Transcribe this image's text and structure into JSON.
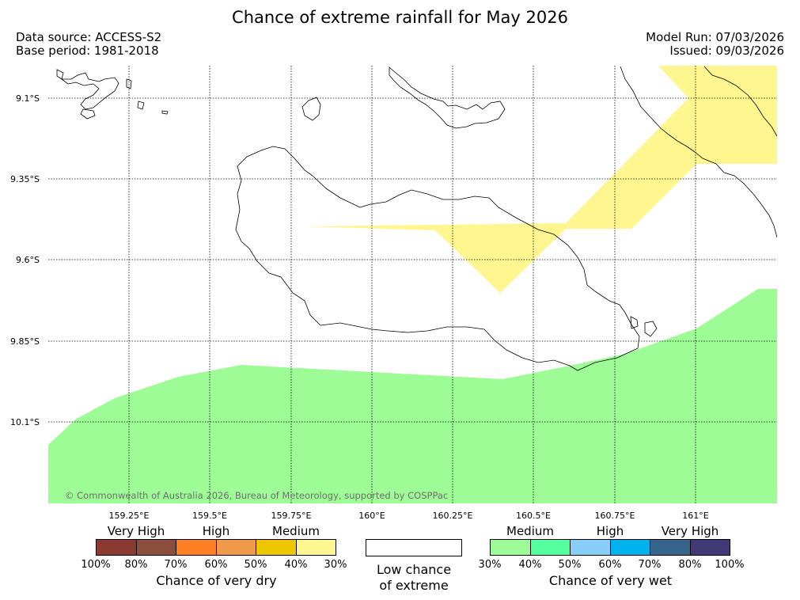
{
  "header": {
    "title": "Chance of extreme rainfall for May 2026",
    "data_source": "Data source: ACCESS-S2",
    "base_period": "Base period: 1981-2018",
    "model_run": "Model Run: 07/03/2026",
    "issued": "Issued: 09/03/2026"
  },
  "map": {
    "latitude_labels": [
      "9.1°S",
      "9.35°S",
      "9.6°S",
      "9.85°S",
      "10.1°S"
    ],
    "longitude_labels": [
      "159.25°E",
      "159.5°E",
      "159.75°E",
      "160°E",
      "160.25°E",
      "160.5°E",
      "160.75°E",
      "161°E"
    ],
    "extent": {
      "lon_min": 159.0,
      "lon_max": 161.25,
      "lat_min": -10.35,
      "lat_max": -9.0
    },
    "copyright": "© Commonwealth of Australia 2026, Bureau of Meteorology, supported by COSPPac",
    "colors": {
      "medium_dry": "#fff68f",
      "medium_wet": "#9efc96",
      "coastline": "#000000",
      "gridline": "#000000"
    }
  },
  "legend": {
    "dry": {
      "title": "Chance of very dry",
      "categories": [
        "Very High",
        "High",
        "Medium"
      ],
      "ticks": [
        "100%",
        "80%",
        "70%",
        "60%",
        "50%",
        "40%",
        "30%"
      ],
      "colors": [
        "#8b3a32",
        "#8b4d3c",
        "#ff7f24",
        "#ee9a49",
        "#eec600",
        "#fff68f"
      ]
    },
    "low": {
      "label_line1": "Low chance",
      "label_line2": "of extreme"
    },
    "wet": {
      "title": "Chance of very wet",
      "categories": [
        "Medium",
        "High",
        "Very High"
      ],
      "ticks": [
        "30%",
        "40%",
        "50%",
        "60%",
        "70%",
        "80%",
        "100%"
      ],
      "colors": [
        "#9efc96",
        "#54ff9f",
        "#87cefa",
        "#00b2ee",
        "#36648b",
        "#3f3a75"
      ]
    }
  }
}
